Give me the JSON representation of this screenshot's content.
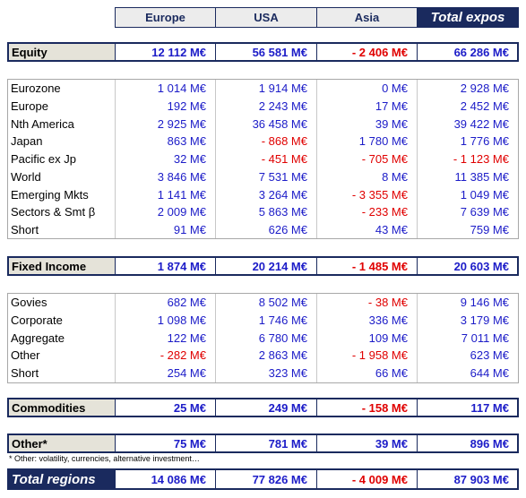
{
  "header": {
    "columns": [
      "Europe",
      "USA",
      "Asia",
      "Total expos"
    ]
  },
  "sections": [
    {
      "title": "Equity",
      "totals": [
        "12 112 M€",
        "56 581 M€",
        "- 2 406 M€",
        "66 286 M€"
      ],
      "rows": [
        {
          "label": "Eurozone",
          "values": [
            "1 014 M€",
            "1 914 M€",
            "0 M€",
            "2 928 M€"
          ]
        },
        {
          "label": "Europe",
          "values": [
            "192 M€",
            "2 243 M€",
            "17 M€",
            "2 452 M€"
          ]
        },
        {
          "label": "Nth America",
          "values": [
            "2 925 M€",
            "36 458 M€",
            "39 M€",
            "39 422 M€"
          ]
        },
        {
          "label": "Japan",
          "values": [
            "863 M€",
            "- 868 M€",
            "1 780 M€",
            "1 776 M€"
          ]
        },
        {
          "label": "Pacific ex Jp",
          "values": [
            "32 M€",
            "- 451 M€",
            "- 705 M€",
            "- 1 123 M€"
          ]
        },
        {
          "label": "World",
          "values": [
            "3 846 M€",
            "7 531 M€",
            "8 M€",
            "11 385 M€"
          ]
        },
        {
          "label": "Emerging Mkts",
          "values": [
            "1 141 M€",
            "3 264 M€",
            "- 3 355 M€",
            "1 049 M€"
          ]
        },
        {
          "label": "Sectors & Smt β",
          "values": [
            "2 009 M€",
            "5 863 M€",
            "- 233 M€",
            "7 639 M€"
          ]
        },
        {
          "label": "Short",
          "values": [
            "91 M€",
            "626 M€",
            "43 M€",
            "759 M€"
          ]
        }
      ]
    },
    {
      "title": "Fixed Income",
      "totals": [
        "1 874 M€",
        "20 214 M€",
        "- 1 485 M€",
        "20 603 M€"
      ],
      "rows": [
        {
          "label": "Govies",
          "values": [
            "682 M€",
            "8 502 M€",
            "- 38 M€",
            "9 146 M€"
          ]
        },
        {
          "label": "Corporate",
          "values": [
            "1 098 M€",
            "1 746 M€",
            "336 M€",
            "3 179 M€"
          ]
        },
        {
          "label": "Aggregate",
          "values": [
            "122 M€",
            "6 780 M€",
            "109 M€",
            "7 011 M€"
          ]
        },
        {
          "label": "Other",
          "values": [
            "- 282 M€",
            "2 863 M€",
            "- 1 958 M€",
            "623 M€"
          ]
        },
        {
          "label": "Short",
          "values": [
            "254 M€",
            "323 M€",
            "66 M€",
            "644 M€"
          ]
        }
      ]
    },
    {
      "title": "Commodities",
      "totals": [
        "25 M€",
        "249 M€",
        "- 158 M€",
        "117 M€"
      ],
      "rows": []
    },
    {
      "title": "Other*",
      "totals": [
        "75 M€",
        "781 M€",
        "39 M€",
        "896 M€"
      ],
      "rows": []
    }
  ],
  "footnote": "* Other: volatility, currencies, alternative investment…",
  "total": {
    "label": "Total regions",
    "values": [
      "14 086 M€",
      "77 826 M€",
      "- 4 009 M€",
      "87 903 M€"
    ]
  }
}
